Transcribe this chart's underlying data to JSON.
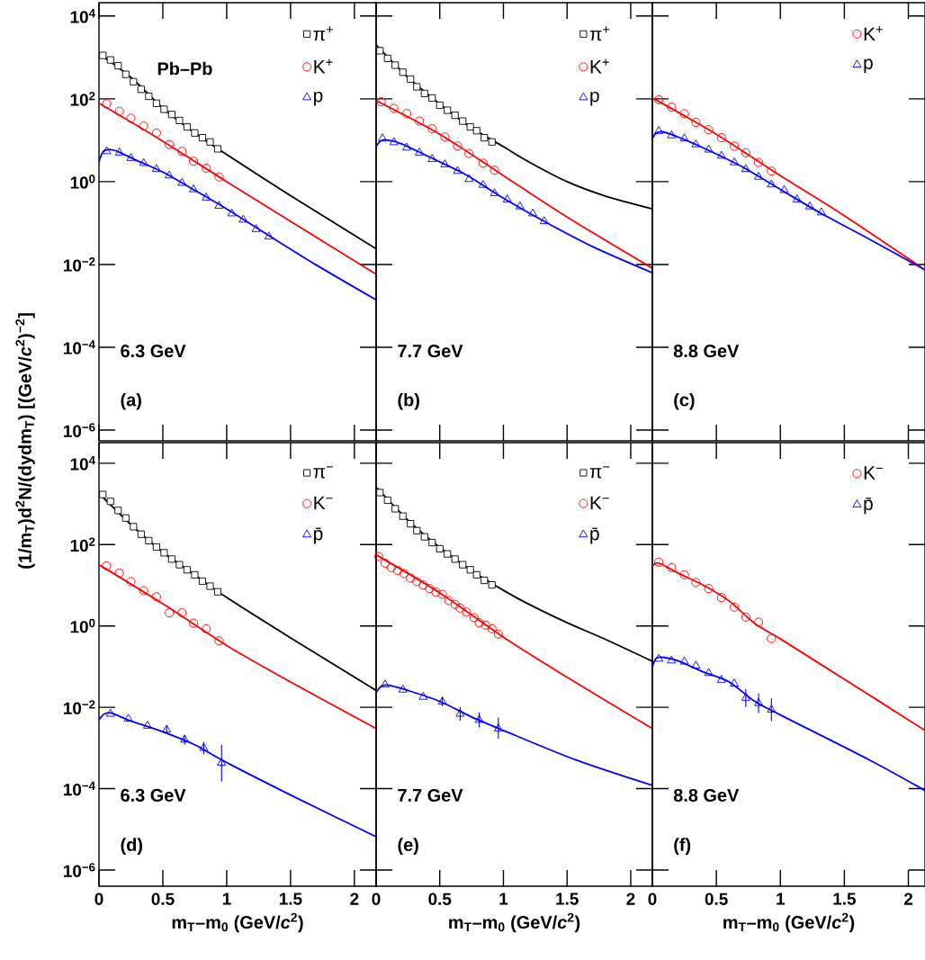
{
  "chart_data": [
    {
      "type": "scatter",
      "ylabel": "(1/m$_{T}$)d$^{2}$N/(dydm$_{T}$) [(GeV/*c*$^{2}$)$^{−2}$]",
      "xlim": [
        0,
        2.17
      ],
      "ylim": [
        5.5e-07,
        21000
      ],
      "log": "y",
      "tick_labels": "y",
      "legend": "top right",
      "xticks": [
        0,
        0.5,
        1,
        1.5,
        2
      ],
      "yticks": [
        {
          "value": 1e-06,
          "label": "10$^{−6}$"
        },
        {
          "value": 0.0001,
          "label": "10$^{−4}$"
        },
        {
          "value": 0.01,
          "label": "10$^{−2}$"
        },
        {
          "value": 1,
          "label": "10$^{0}$"
        },
        {
          "value": 100,
          "label": "10$^{2}$"
        },
        {
          "value": 10000,
          "label": "10$^{4}$"
        }
      ],
      "annotations": [
        "Pb–Pb",
        "6.3 GeV",
        "(a)"
      ],
      "series": [
        {
          "type": "line",
          "color": "#000000",
          "x": [
            0,
            0.25,
            0.5,
            0.75,
            1,
            1.5,
            2.17
          ],
          "values": [
            1230,
            330,
            60,
            15,
            4.5,
            0.46,
            0.024
          ]
        },
        {
          "type": "line",
          "color": "#ff0000",
          "x": [
            0,
            0.5,
            1,
            1.5,
            2.17
          ],
          "values": [
            78,
            9.5,
            1.0,
            0.11,
            0.0058
          ]
        },
        {
          "type": "line",
          "color": "#0000ff",
          "x": [
            0,
            0.03,
            0.08,
            0.15,
            0.3,
            0.5,
            0.75,
            1,
            1.33,
            1.7,
            2.17
          ],
          "values": [
            3.0,
            5.2,
            6.0,
            5.3,
            3.2,
            1.7,
            0.62,
            0.22,
            0.05,
            0.0098,
            0.0014
          ]
        },
        {
          "name": "π$^{+}$",
          "color": "#000000",
          "marker": "square",
          "x": [
            0.03,
            0.09,
            0.15,
            0.21,
            0.27,
            0.33,
            0.39,
            0.45,
            0.51,
            0.57,
            0.63,
            0.69,
            0.75,
            0.81,
            0.87,
            0.93
          ],
          "values": [
            1120,
            870,
            630,
            390,
            260,
            170,
            115,
            78,
            56,
            42,
            30,
            21,
            15,
            11.5,
            9.1,
            6.2
          ]
        },
        {
          "name": "K$^{+}$",
          "color": "#ff0000",
          "marker": "circle",
          "x": [
            0.06,
            0.16,
            0.25,
            0.35,
            0.45,
            0.55,
            0.65,
            0.74,
            0.84,
            0.94
          ],
          "values": [
            76,
            50,
            34,
            22,
            15,
            7.9,
            5.4,
            3.1,
            2.1,
            1.3
          ]
        },
        {
          "name": "p",
          "color": "#0000ff",
          "marker": "triangle",
          "x": [
            0.06,
            0.16,
            0.25,
            0.35,
            0.45,
            0.55,
            0.65,
            0.74,
            0.84,
            0.94,
            1.04,
            1.13,
            1.23,
            1.33
          ],
          "values": [
            5.4,
            5.0,
            3.7,
            2.8,
            2.0,
            1.4,
            0.93,
            0.65,
            0.41,
            0.26,
            0.17,
            0.12,
            0.071,
            0.047
          ]
        }
      ]
    },
    {
      "type": "scatter",
      "xlim": [
        0,
        2.17
      ],
      "ylim": [
        5.5e-07,
        21000
      ],
      "log": "y",
      "tick_labels": false,
      "legend": "top right",
      "xticks": [
        0,
        0.5,
        1,
        1.5,
        2
      ],
      "yticks": [
        {
          "value": 1e-06,
          "label": null
        },
        {
          "value": 0.0001,
          "label": null
        },
        {
          "value": 0.01,
          "label": null
        },
        {
          "value": 1,
          "label": null
        },
        {
          "value": 100,
          "label": null
        },
        {
          "value": 10000,
          "label": null
        }
      ],
      "annotations": [
        "7.7 GeV",
        "(b)"
      ],
      "series": [
        {
          "type": "line",
          "color": "#000000",
          "x": [
            0,
            0.25,
            0.5,
            0.75,
            1,
            1.2,
            1.5,
            1.8,
            2.17
          ],
          "values": [
            2000,
            330,
            75,
            20,
            7.0,
            3.0,
            1.0,
            0.45,
            0.22
          ]
        },
        {
          "type": "line",
          "color": "#ff0000",
          "x": [
            0,
            0.5,
            1,
            1.5,
            2.17
          ],
          "values": [
            91,
            14,
            1.4,
            0.14,
            0.0081
          ]
        },
        {
          "type": "line",
          "color": "#0000ff",
          "x": [
            0,
            0.04,
            0.1,
            0.2,
            0.4,
            0.7,
            1,
            1.32,
            1.7,
            2.17
          ],
          "values": [
            7.1,
            9.8,
            10,
            8.2,
            4.2,
            1.5,
            0.4,
            0.11,
            0.027,
            0.0063
          ]
        },
        {
          "name": "π$^{+}$",
          "color": "#000000",
          "marker": "square",
          "x": [
            0.03,
            0.09,
            0.15,
            0.21,
            0.27,
            0.32,
            0.38,
            0.44,
            0.5,
            0.56,
            0.62,
            0.68,
            0.74,
            0.79,
            0.85,
            0.91
          ],
          "values": [
            1450,
            950,
            650,
            440,
            300,
            195,
            135,
            105,
            70,
            53,
            40,
            29,
            21,
            17,
            11.5,
            9.1
          ]
        },
        {
          "name": "K$^{+}$",
          "color": "#ff0000",
          "marker": "circle",
          "x": [
            0.04,
            0.14,
            0.24,
            0.34,
            0.44,
            0.54,
            0.64,
            0.73,
            0.84,
            0.93
          ],
          "values": [
            85,
            59,
            44,
            29,
            19,
            12,
            7.3,
            4.8,
            2.8,
            1.9
          ]
        },
        {
          "name": "p",
          "color": "#0000ff",
          "marker": "triangle",
          "x": [
            0.05,
            0.14,
            0.24,
            0.34,
            0.44,
            0.54,
            0.64,
            0.73,
            0.84,
            0.93,
            1.03,
            1.13,
            1.23,
            1.32
          ],
          "values": [
            11,
            8.9,
            6.6,
            5.0,
            3.5,
            2.6,
            1.8,
            1.15,
            0.83,
            0.52,
            0.37,
            0.25,
            0.17,
            0.11
          ]
        }
      ]
    },
    {
      "type": "scatter",
      "xlim": [
        0,
        2.13
      ],
      "ylim": [
        5.5e-07,
        21000
      ],
      "log": "y",
      "tick_labels": false,
      "legend": "top right",
      "xticks": [
        0,
        0.5,
        1,
        1.5,
        2
      ],
      "yticks": [
        {
          "value": 1e-06,
          "label": null
        },
        {
          "value": 0.0001,
          "label": null
        },
        {
          "value": 0.01,
          "label": null
        },
        {
          "value": 1,
          "label": null
        },
        {
          "value": 100,
          "label": null
        },
        {
          "value": 10000,
          "label": null
        }
      ],
      "annotations": [
        "8.8 GeV",
        "(c)"
      ],
      "series": [
        {
          "type": "line",
          "color": "#ff0000",
          "x": [
            0,
            0.5,
            1,
            1.5,
            2.13
          ],
          "values": [
            105,
            14,
            1.4,
            0.15,
            0.0074
          ]
        },
        {
          "type": "line",
          "color": "#0000ff",
          "x": [
            0,
            0.03,
            0.08,
            0.2,
            0.4,
            0.7,
            1,
            1.32,
            1.7,
            2.13
          ],
          "values": [
            11,
            15,
            16,
            12,
            6.5,
            2.3,
            0.65,
            0.17,
            0.04,
            0.0074
          ]
        },
        {
          "name": "K$^{+}$",
          "color": "#ff0000",
          "marker": "circle",
          "x": [
            0.05,
            0.15,
            0.25,
            0.34,
            0.44,
            0.54,
            0.64,
            0.73,
            0.83,
            0.93
          ],
          "values": [
            95,
            63,
            44,
            27,
            18,
            11.5,
            7.2,
            5.0,
            2.9,
            1.8
          ]
        },
        {
          "name": "p",
          "color": "#0000ff",
          "marker": "triangle",
          "x": [
            0.05,
            0.15,
            0.25,
            0.34,
            0.44,
            0.54,
            0.64,
            0.73,
            0.83,
            0.93,
            1.03,
            1.13,
            1.23,
            1.32
          ],
          "values": [
            16.6,
            13,
            11,
            7.9,
            5.9,
            4.2,
            2.9,
            2.0,
            1.3,
            0.85,
            0.62,
            0.37,
            0.25,
            0.18
          ]
        }
      ]
    },
    {
      "type": "scatter",
      "xlabel": "m$_{T}$–m$_{0}$ (GeV/*c*$^{2}$)",
      "xlim": [
        0,
        2.17
      ],
      "ylim": [
        4e-07,
        32000
      ],
      "log": "y",
      "legend": "top right",
      "xticks": [
        0,
        0.5,
        1,
        1.5,
        2
      ],
      "yticks": [
        {
          "value": 1e-06,
          "label": "10$^{−6}$"
        },
        {
          "value": 0.0001,
          "label": "10$^{−4}$"
        },
        {
          "value": 0.01,
          "label": "10$^{−2}$"
        },
        {
          "value": 1,
          "label": "10$^{0}$"
        },
        {
          "value": 100,
          "label": "10$^{2}$"
        },
        {
          "value": 10000,
          "label": "10$^{4}$"
        }
      ],
      "annotations": [
        "6.3 GeV",
        "(d)"
      ],
      "series": [
        {
          "type": "line",
          "color": "#000000",
          "x": [
            0,
            0.25,
            0.5,
            0.75,
            1,
            1.5,
            2.17
          ],
          "values": [
            1800,
            310,
            65,
            18,
            5.0,
            0.51,
            0.026
          ]
        },
        {
          "type": "line",
          "color": "#ff0000",
          "x": [
            0,
            0.5,
            1,
            1.5,
            2.17
          ],
          "values": [
            32,
            3.5,
            0.33,
            0.042,
            0.003
          ]
        },
        {
          "type": "line",
          "color": "#0000ff",
          "x": [
            0,
            0.04,
            0.1,
            0.25,
            0.5,
            0.75,
            0.96,
            1.5,
            2.17
          ],
          "values": [
            0.0049,
            0.0068,
            0.0072,
            0.0046,
            0.0025,
            0.0012,
            0.00051,
            7e-05,
            6.6e-06
          ]
        },
        {
          "name": "π$^{−}$",
          "color": "#000000",
          "marker": "square",
          "x": [
            0.03,
            0.09,
            0.15,
            0.21,
            0.27,
            0.33,
            0.39,
            0.45,
            0.51,
            0.57,
            0.63,
            0.69,
            0.75,
            0.81,
            0.87,
            0.93
          ],
          "values": [
            1700,
            1150,
            690,
            450,
            275,
            180,
            125,
            87,
            63,
            44,
            32,
            24,
            18,
            12.6,
            9.5,
            6.9
          ]
        },
        {
          "name": "K$^{−}$",
          "color": "#ff0000",
          "marker": "circle",
          "x": [
            0.06,
            0.16,
            0.25,
            0.35,
            0.45,
            0.55,
            0.65,
            0.74,
            0.84,
            0.94
          ],
          "values": [
            30,
            20,
            12.3,
            7.4,
            5.2,
            2.1,
            2.1,
            1.17,
            0.85,
            0.43
          ]
        },
        {
          "name": "p̄",
          "color": "#0000ff",
          "marker": "triangle",
          "x": [
            0.09,
            0.23,
            0.38,
            0.53,
            0.67,
            0.82,
            0.96
          ],
          "values": [
            0.0069,
            0.0052,
            0.0035,
            0.0028,
            0.0016,
            0.001,
            0.00043
          ],
          "errors": [
            null,
            null,
            null,
            [
              0.0022,
              0.0036
            ],
            [
              0.0012,
              0.0021
            ],
            [
              0.0007,
              0.0014
            ],
            [
              0.00015,
              0.0012
            ]
          ]
        }
      ]
    },
    {
      "type": "scatter",
      "xlabel": "m$_{T}$–m$_{0}$ (GeV/*c*$^{2}$)",
      "xlim": [
        0,
        2.17
      ],
      "ylim": [
        4e-07,
        32000
      ],
      "log": "y",
      "tick_labels": "x",
      "legend": "top right",
      "xticks": [
        0,
        0.5,
        1,
        1.5,
        2
      ],
      "yticks": [
        {
          "value": 1e-06,
          "label": null
        },
        {
          "value": 0.0001,
          "label": null
        },
        {
          "value": 0.01,
          "label": null
        },
        {
          "value": 1,
          "label": null
        },
        {
          "value": 100,
          "label": null
        },
        {
          "value": 10000,
          "label": null
        }
      ],
      "annotations": [
        "7.7 GeV",
        "(e)"
      ],
      "series": [
        {
          "type": "line",
          "color": "#000000",
          "x": [
            0,
            0.25,
            0.5,
            0.75,
            1,
            1.2,
            1.5,
            1.8,
            2.17
          ],
          "values": [
            2600,
            400,
            85,
            23,
            7.5,
            3.4,
            1.2,
            0.47,
            0.135
          ]
        },
        {
          "type": "line",
          "color": "#ff0000",
          "x": [
            0,
            0.5,
            1,
            1.5,
            2.17
          ],
          "values": [
            56,
            6.5,
            0.53,
            0.055,
            0.003
          ]
        },
        {
          "type": "line",
          "color": "#0000ff",
          "x": [
            0,
            0.04,
            0.1,
            0.25,
            0.5,
            0.75,
            1,
            1.575,
            2.17
          ],
          "values": [
            0.023,
            0.033,
            0.035,
            0.026,
            0.014,
            0.0058,
            0.0027,
            0.0005,
            0.00012
          ]
        },
        {
          "name": "π$^{−}$",
          "color": "#000000",
          "marker": "square",
          "x": [
            0.03,
            0.09,
            0.15,
            0.21,
            0.27,
            0.32,
            0.38,
            0.44,
            0.5,
            0.56,
            0.62,
            0.68,
            0.74,
            0.79,
            0.85,
            0.91
          ],
          "values": [
            1900,
            1230,
            760,
            500,
            325,
            220,
            155,
            112,
            79,
            59,
            44,
            32,
            24,
            18,
            13.2,
            10.2
          ]
        },
        {
          "name": "K$^{−}$",
          "color": "#ff0000",
          "marker": "circle",
          "x": [
            0.02,
            0.07,
            0.12,
            0.17,
            0.22,
            0.27,
            0.32,
            0.37,
            0.42,
            0.47,
            0.52,
            0.57,
            0.62,
            0.66,
            0.71,
            0.77,
            0.81,
            0.86,
            0.91,
            0.96
          ],
          "values": [
            51,
            35,
            27,
            23,
            19.5,
            15.1,
            12.3,
            10.2,
            8.3,
            6.8,
            6.0,
            4.2,
            3.4,
            2.75,
            2.2,
            1.6,
            1.2,
            1.05,
            0.85,
            0.63
          ]
        },
        {
          "name": "p̄",
          "color": "#0000ff",
          "marker": "triangle",
          "x": [
            0.07,
            0.21,
            0.37,
            0.52,
            0.66,
            0.81,
            0.96
          ],
          "values": [
            0.036,
            0.027,
            0.018,
            0.0138,
            0.0069,
            0.0049,
            0.003
          ],
          "errors": [
            null,
            null,
            null,
            [
              0.0107,
              0.0178
            ],
            [
              0.0047,
              0.0102
            ],
            [
              0.0032,
              0.0075
            ],
            [
              0.0017,
              0.0055
            ]
          ]
        }
      ]
    },
    {
      "type": "scatter",
      "xlabel": "m$_{T}$–m$_{0}$ (GeV/*c*$^{2}$)",
      "xlim": [
        0,
        2.13
      ],
      "ylim": [
        4e-07,
        32000
      ],
      "log": "y",
      "tick_labels": "x",
      "legend": "top right",
      "xticks": [
        0,
        0.5,
        1,
        1.5,
        2
      ],
      "yticks": [
        {
          "value": 1e-06,
          "label": null
        },
        {
          "value": 0.0001,
          "label": null
        },
        {
          "value": 0.01,
          "label": null
        },
        {
          "value": 1,
          "label": null
        },
        {
          "value": 100,
          "label": null
        },
        {
          "value": 10000,
          "label": null
        }
      ],
      "annotations": [
        "8.8 GeV",
        "(f)"
      ],
      "series": [
        {
          "type": "line",
          "color": "#ff0000",
          "x": [
            0,
            0.05,
            0.2,
            0.4,
            0.6,
            0.8,
            1,
            1.5,
            2.13
          ],
          "values": [
            29,
            35,
            20,
            10,
            4.1,
            1.15,
            0.48,
            0.049,
            0.0027
          ]
        },
        {
          "type": "line",
          "color": "#0000ff",
          "x": [
            0,
            0.03,
            0.08,
            0.2,
            0.4,
            0.6,
            0.8,
            1,
            1.7,
            2.13
          ],
          "values": [
            0.1,
            0.16,
            0.17,
            0.14,
            0.074,
            0.042,
            0.014,
            0.0065,
            0.0005,
            9e-05
          ]
        },
        {
          "name": "K$^{−}$",
          "color": "#ff0000",
          "marker": "circle",
          "x": [
            0.05,
            0.15,
            0.25,
            0.34,
            0.44,
            0.54,
            0.64,
            0.73,
            0.83,
            0.93
          ],
          "values": [
            37,
            27,
            18,
            11.7,
            8.3,
            5.0,
            2.9,
            1.65,
            1.23,
            0.49
          ]
        },
        {
          "name": "p̄",
          "color": "#0000ff",
          "marker": "triangle",
          "x": [
            0.05,
            0.15,
            0.25,
            0.34,
            0.44,
            0.54,
            0.64,
            0.73,
            0.83,
            0.93
          ],
          "values": [
            0.155,
            0.141,
            0.132,
            0.105,
            0.069,
            0.047,
            0.038,
            0.017,
            0.0126,
            0.0087
          ],
          "errors": [
            null,
            null,
            null,
            null,
            null,
            null,
            null,
            [
              0.0102,
              0.028
            ],
            [
              0.0072,
              0.0219
            ],
            [
              0.0046,
              0.0165
            ]
          ]
        }
      ]
    }
  ]
}
